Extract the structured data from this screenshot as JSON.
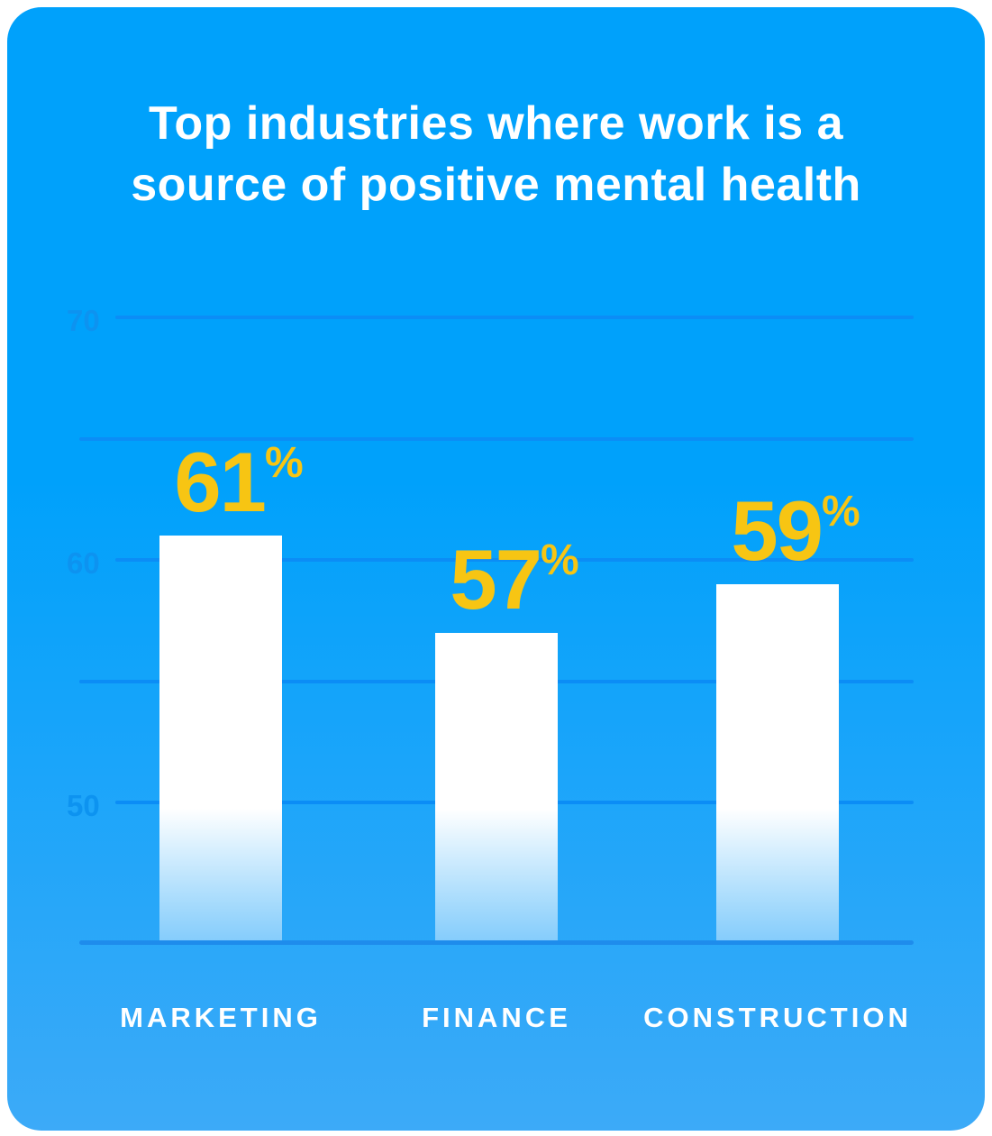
{
  "chart_data": {
    "type": "bar",
    "orientation": "vertical",
    "title": "Top industries where work is a source of positive mental health",
    "title_lines": [
      "Top industries where work is a",
      "source of positive mental health"
    ],
    "categories": [
      "MARKETING",
      "FINANCE",
      "CONSTRUCTION"
    ],
    "values": [
      61,
      57,
      59
    ],
    "value_suffix": "%",
    "y_axis": {
      "ticks_labeled": [
        70,
        60,
        50
      ],
      "ticks_minor": [
        65,
        55
      ],
      "range": [
        44,
        70
      ]
    },
    "grid": true,
    "legend": false
  },
  "theme": {
    "bg_top": "#00A1FB",
    "bg_bottom": "#3CAAF8",
    "title_color": "#FFFFFF",
    "bar_color": "#FFFFFF",
    "value_color": "#F7C513",
    "gridline_color": "#0B8DF6",
    "baseline_color": "#1E8CEC",
    "tick_color": "#0D93F0",
    "category_color": "#FFFFFF"
  }
}
